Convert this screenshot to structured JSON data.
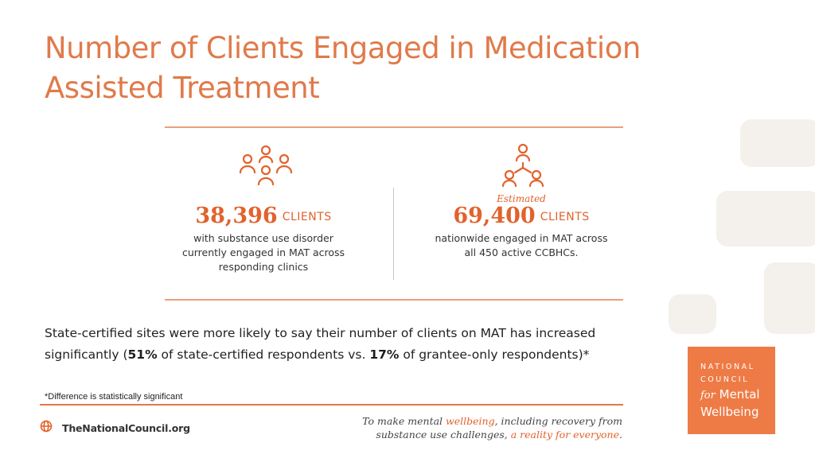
{
  "slide": {
    "title": "Number of Clients Engaged in Medication Assisted Treatment"
  },
  "stats": {
    "left": {
      "icon": "group-of-people-icon",
      "number": "38,396",
      "unit": "CLIENTS",
      "description": "with substance use disorder currently engaged in MAT across responding clinics"
    },
    "right": {
      "icon": "network-people-icon",
      "qualifier": "Estimated",
      "number": "69,400",
      "unit": "CLIENTS",
      "description": "nationwide engaged in MAT across all 450 active CCBHCs."
    }
  },
  "body": {
    "part1": "State-certified sites were more likely to say their number of clients on MAT has increased significantly (",
    "pct_state": "51%",
    "part2": " of state-certified respondents vs. ",
    "pct_grantee": "17%",
    "part3": " of grantee-only respondents)*"
  },
  "footnote": "*Difference is statistically significant",
  "footer": {
    "site_icon": "globe-icon",
    "site": "TheNationalCouncil.org",
    "tagline": {
      "t1": "To make mental ",
      "t2": "wellbeing",
      "t3": ", including recovery from",
      "t4": "substance use challenges, ",
      "t5": "a reality for everyone",
      "t6": "."
    }
  },
  "logo": {
    "line1": "NATIONAL",
    "line2": "COUNCIL",
    "for": "for",
    "line3": "Mental",
    "line4": "Wellbeing"
  },
  "colors": {
    "accent": "#e2622c",
    "title": "#e07a4a",
    "logo_bg": "#ee7b45"
  }
}
